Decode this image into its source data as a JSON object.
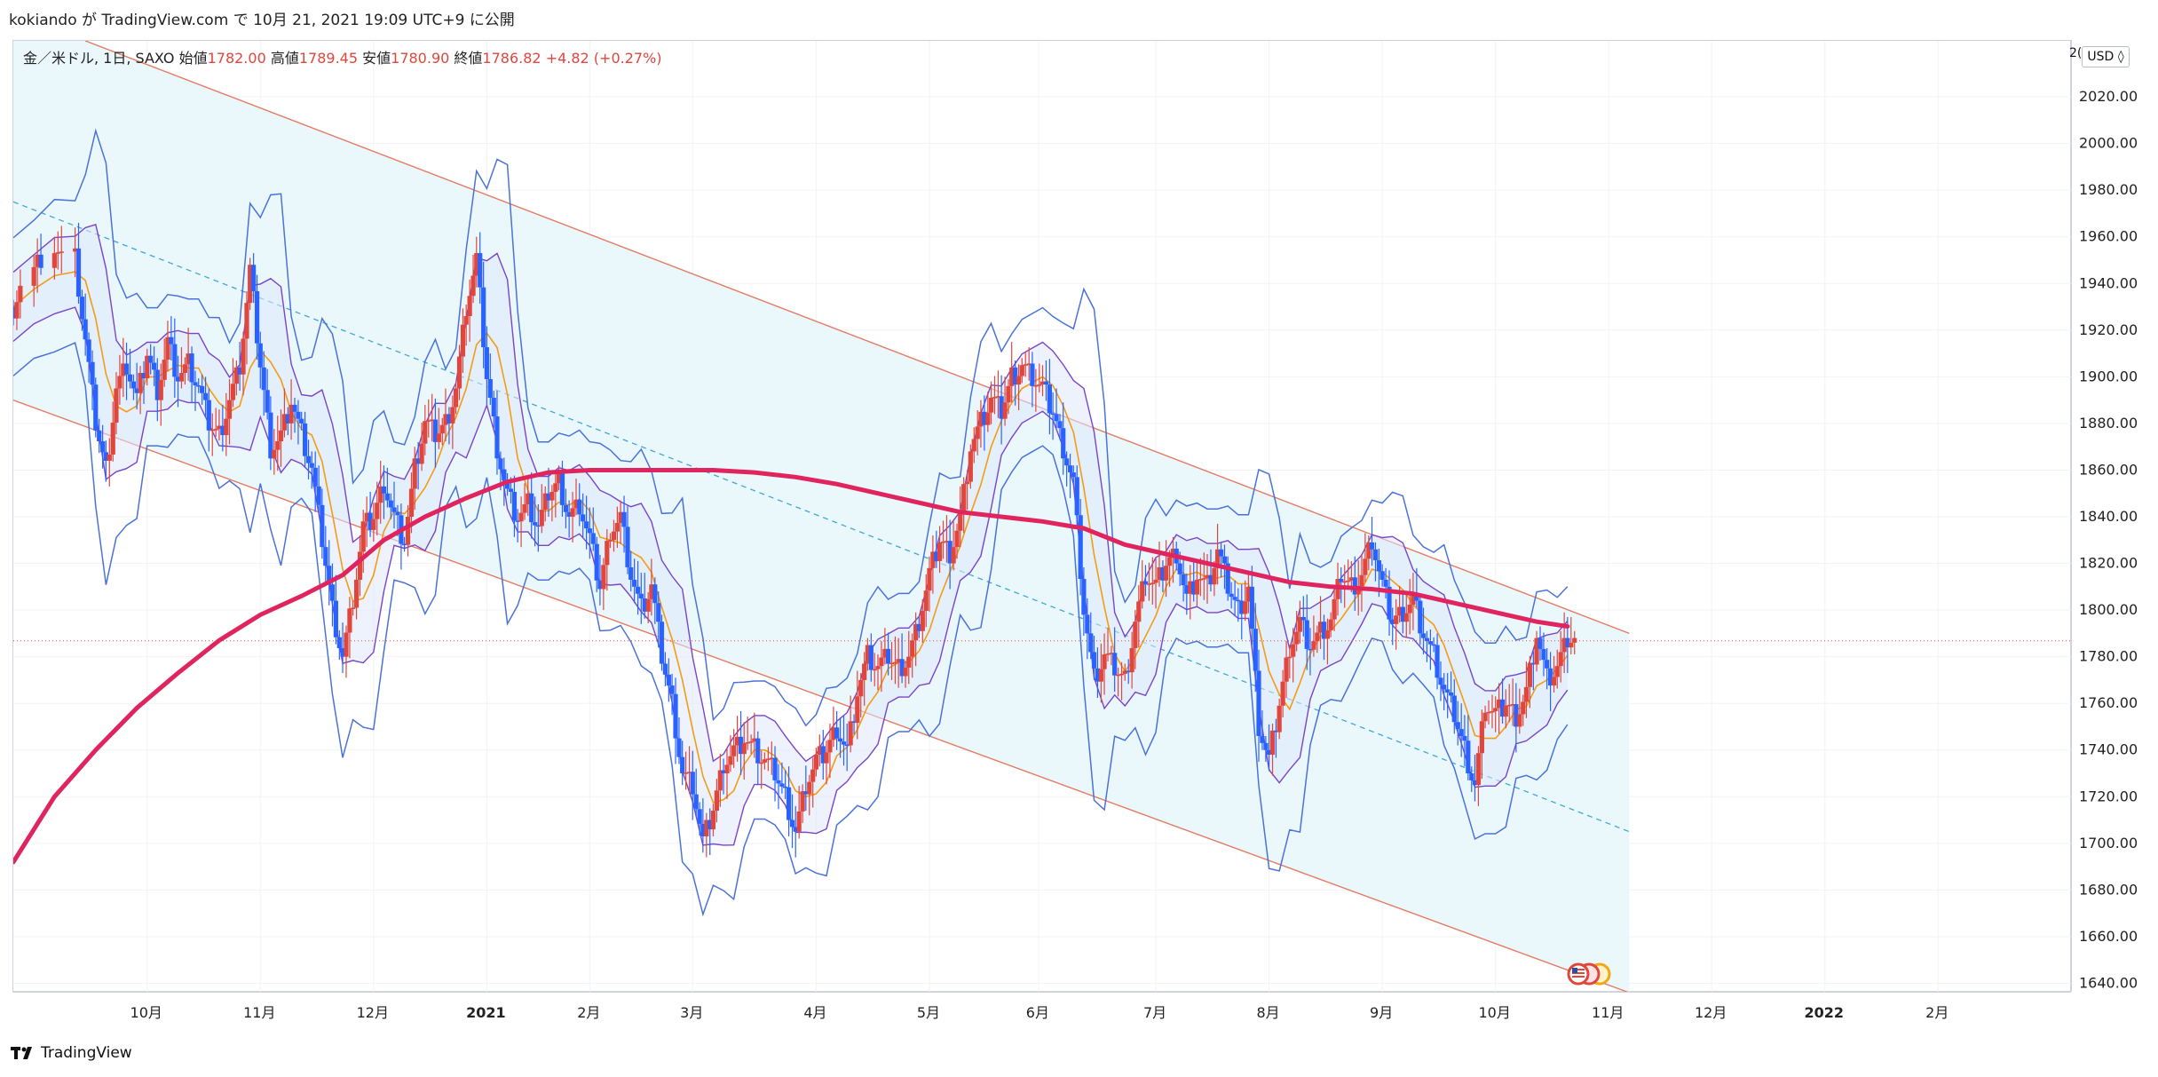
{
  "header": {
    "user": "kokiando",
    "particle_ga": "が",
    "site": "TradingView.com",
    "particle_de": "で",
    "datetime": "10月 21, 2021 19:09 UTC+9",
    "published": "に公開"
  },
  "legend": {
    "symbol": "金／米ドル, 1日, SAXO",
    "open_label": "始値",
    "open_value": "1782.00",
    "high_label": "高値",
    "high_value": "1789.45",
    "low_label": "安値",
    "low_value": "1780.90",
    "close_label": "終値",
    "close_value": "1786.82",
    "change": "+4.82 (+0.27%)"
  },
  "currency_button": "USD ◊",
  "currency_prefix": "2(",
  "footer": {
    "brand": "TradingView"
  },
  "colors": {
    "candle_up": "#e0463c",
    "candle_down": "#2962ff",
    "channel_fill": "#e6f7fb",
    "channel_line": "#e57a64",
    "ma200": "#e0245e",
    "bb_outer": "#4a72d8",
    "bb_inner": "#7a44c9",
    "ma20": "#f39c12"
  },
  "chart_data": {
    "type": "candlestick",
    "symbol": "XAUUSD",
    "timeframe": "1D",
    "y_ticks": [
      1640,
      1660,
      1680,
      1700,
      1720,
      1740,
      1760,
      1780,
      1800,
      1820,
      1840,
      1860,
      1880,
      1900,
      1920,
      1940,
      1960,
      1980,
      2000,
      2020
    ],
    "y_tick_labels": [
      "1640.00",
      "1660.00",
      "1680.00",
      "1700.00",
      "1720.00",
      "1740.00",
      "1760.00",
      "1780.00",
      "1800.00",
      "1820.00",
      "1840.00",
      "1860.00",
      "1880.00",
      "1900.00",
      "1920.00",
      "1940.00",
      "1960.00",
      "1980.00",
      "2000.00",
      "2020.00"
    ],
    "ylim": [
      1636,
      2044
    ],
    "x_labels": [
      "10月",
      "11月",
      "12月",
      "2021",
      "2月",
      "3月",
      "4月",
      "5月",
      "6月",
      "7月",
      "8月",
      "9月",
      "10月",
      "11月",
      "12月",
      "2022",
      "2月"
    ],
    "x_label_t": [
      0.065,
      0.12,
      0.175,
      0.23,
      0.28,
      0.33,
      0.39,
      0.445,
      0.498,
      0.555,
      0.61,
      0.665,
      0.72,
      0.775,
      0.825,
      0.88,
      0.935
    ],
    "last_bar_t": 0.755,
    "projection_end_t": 0.785,
    "last_close": 1786.82,
    "channel": {
      "upper": [
        [
          0.035,
          2044
        ],
        [
          0.785,
          1790
        ]
      ],
      "lower": [
        [
          0.0,
          1890
        ],
        [
          0.785,
          1636
        ]
      ],
      "middle": [
        [
          0.0,
          1975
        ],
        [
          0.785,
          1705
        ]
      ]
    },
    "close_path": [
      [
        0.0,
        1930
      ],
      [
        0.01,
        1945
      ],
      [
        0.02,
        1955
      ],
      [
        0.03,
        1950
      ],
      [
        0.035,
        1915
      ],
      [
        0.04,
        1880
      ],
      [
        0.045,
        1860
      ],
      [
        0.05,
        1895
      ],
      [
        0.055,
        1905
      ],
      [
        0.06,
        1890
      ],
      [
        0.065,
        1910
      ],
      [
        0.07,
        1895
      ],
      [
        0.075,
        1915
      ],
      [
        0.08,
        1900
      ],
      [
        0.085,
        1905
      ],
      [
        0.09,
        1895
      ],
      [
        0.095,
        1880
      ],
      [
        0.1,
        1875
      ],
      [
        0.105,
        1890
      ],
      [
        0.11,
        1905
      ],
      [
        0.115,
        1945
      ],
      [
        0.12,
        1905
      ],
      [
        0.125,
        1870
      ],
      [
        0.13,
        1875
      ],
      [
        0.135,
        1890
      ],
      [
        0.14,
        1875
      ],
      [
        0.145,
        1860
      ],
      [
        0.15,
        1830
      ],
      [
        0.155,
        1800
      ],
      [
        0.16,
        1780
      ],
      [
        0.165,
        1805
      ],
      [
        0.17,
        1835
      ],
      [
        0.175,
        1840
      ],
      [
        0.18,
        1855
      ],
      [
        0.185,
        1840
      ],
      [
        0.19,
        1830
      ],
      [
        0.195,
        1860
      ],
      [
        0.2,
        1880
      ],
      [
        0.205,
        1875
      ],
      [
        0.21,
        1880
      ],
      [
        0.215,
        1895
      ],
      [
        0.22,
        1930
      ],
      [
        0.225,
        1950
      ],
      [
        0.23,
        1900
      ],
      [
        0.235,
        1870
      ],
      [
        0.24,
        1850
      ],
      [
        0.245,
        1840
      ],
      [
        0.25,
        1845
      ],
      [
        0.255,
        1835
      ],
      [
        0.26,
        1850
      ],
      [
        0.265,
        1855
      ],
      [
        0.27,
        1840
      ],
      [
        0.275,
        1845
      ],
      [
        0.28,
        1830
      ],
      [
        0.285,
        1810
      ],
      [
        0.29,
        1835
      ],
      [
        0.295,
        1840
      ],
      [
        0.3,
        1815
      ],
      [
        0.305,
        1800
      ],
      [
        0.31,
        1810
      ],
      [
        0.315,
        1780
      ],
      [
        0.32,
        1760
      ],
      [
        0.325,
        1730
      ],
      [
        0.33,
        1725
      ],
      [
        0.335,
        1700
      ],
      [
        0.34,
        1715
      ],
      [
        0.345,
        1735
      ],
      [
        0.35,
        1740
      ],
      [
        0.355,
        1745
      ],
      [
        0.36,
        1740
      ],
      [
        0.365,
        1735
      ],
      [
        0.37,
        1730
      ],
      [
        0.375,
        1720
      ],
      [
        0.38,
        1705
      ],
      [
        0.385,
        1725
      ],
      [
        0.39,
        1735
      ],
      [
        0.395,
        1740
      ],
      [
        0.4,
        1750
      ],
      [
        0.405,
        1740
      ],
      [
        0.41,
        1765
      ],
      [
        0.415,
        1780
      ],
      [
        0.42,
        1775
      ],
      [
        0.425,
        1780
      ],
      [
        0.43,
        1775
      ],
      [
        0.435,
        1780
      ],
      [
        0.44,
        1795
      ],
      [
        0.445,
        1815
      ],
      [
        0.45,
        1830
      ],
      [
        0.455,
        1825
      ],
      [
        0.46,
        1840
      ],
      [
        0.465,
        1870
      ],
      [
        0.47,
        1880
      ],
      [
        0.475,
        1890
      ],
      [
        0.48,
        1885
      ],
      [
        0.485,
        1900
      ],
      [
        0.49,
        1905
      ],
      [
        0.495,
        1900
      ],
      [
        0.5,
        1895
      ],
      [
        0.505,
        1885
      ],
      [
        0.51,
        1870
      ],
      [
        0.515,
        1855
      ],
      [
        0.52,
        1800
      ],
      [
        0.525,
        1770
      ],
      [
        0.53,
        1780
      ],
      [
        0.535,
        1775
      ],
      [
        0.54,
        1770
      ],
      [
        0.545,
        1795
      ],
      [
        0.55,
        1815
      ],
      [
        0.555,
        1810
      ],
      [
        0.56,
        1820
      ],
      [
        0.565,
        1825
      ],
      [
        0.57,
        1805
      ],
      [
        0.575,
        1815
      ],
      [
        0.58,
        1810
      ],
      [
        0.585,
        1825
      ],
      [
        0.59,
        1810
      ],
      [
        0.595,
        1800
      ],
      [
        0.6,
        1810
      ],
      [
        0.605,
        1750
      ],
      [
        0.61,
        1735
      ],
      [
        0.615,
        1760
      ],
      [
        0.62,
        1785
      ],
      [
        0.625,
        1795
      ],
      [
        0.63,
        1785
      ],
      [
        0.635,
        1790
      ],
      [
        0.64,
        1795
      ],
      [
        0.645,
        1815
      ],
      [
        0.65,
        1810
      ],
      [
        0.655,
        1815
      ],
      [
        0.66,
        1830
      ],
      [
        0.665,
        1810
      ],
      [
        0.67,
        1795
      ],
      [
        0.675,
        1800
      ],
      [
        0.68,
        1805
      ],
      [
        0.685,
        1790
      ],
      [
        0.69,
        1780
      ],
      [
        0.695,
        1765
      ],
      [
        0.7,
        1755
      ],
      [
        0.705,
        1740
      ],
      [
        0.71,
        1725
      ],
      [
        0.715,
        1760
      ],
      [
        0.72,
        1755
      ],
      [
        0.725,
        1760
      ],
      [
        0.73,
        1755
      ],
      [
        0.735,
        1765
      ],
      [
        0.74,
        1790
      ],
      [
        0.745,
        1770
      ],
      [
        0.75,
        1775
      ],
      [
        0.755,
        1787
      ]
    ],
    "ma200": [
      [
        0.0,
        1692
      ],
      [
        0.02,
        1720
      ],
      [
        0.04,
        1740
      ],
      [
        0.06,
        1758
      ],
      [
        0.08,
        1773
      ],
      [
        0.1,
        1787
      ],
      [
        0.12,
        1798
      ],
      [
        0.14,
        1806
      ],
      [
        0.16,
        1815
      ],
      [
        0.18,
        1830
      ],
      [
        0.2,
        1840
      ],
      [
        0.22,
        1848
      ],
      [
        0.24,
        1855
      ],
      [
        0.26,
        1859
      ],
      [
        0.28,
        1860
      ],
      [
        0.3,
        1860
      ],
      [
        0.32,
        1860
      ],
      [
        0.34,
        1860
      ],
      [
        0.36,
        1859
      ],
      [
        0.38,
        1857
      ],
      [
        0.4,
        1854
      ],
      [
        0.42,
        1850
      ],
      [
        0.44,
        1846
      ],
      [
        0.46,
        1842
      ],
      [
        0.48,
        1840
      ],
      [
        0.5,
        1838
      ],
      [
        0.52,
        1835
      ],
      [
        0.54,
        1828
      ],
      [
        0.56,
        1824
      ],
      [
        0.58,
        1820
      ],
      [
        0.6,
        1816
      ],
      [
        0.62,
        1812
      ],
      [
        0.64,
        1810
      ],
      [
        0.66,
        1809
      ],
      [
        0.68,
        1807
      ],
      [
        0.7,
        1803
      ],
      [
        0.72,
        1799
      ],
      [
        0.74,
        1795
      ],
      [
        0.755,
        1793
      ]
    ]
  }
}
